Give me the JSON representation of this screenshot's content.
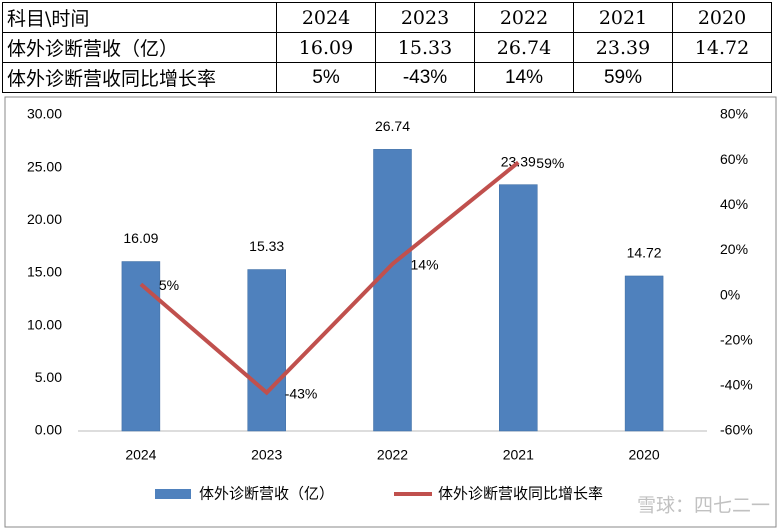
{
  "table": {
    "header": [
      "科目\\时间",
      "2024",
      "2023",
      "2022",
      "2021",
      "2020"
    ],
    "rows": [
      [
        "体外诊断营收（亿）",
        "16.09",
        "15.33",
        "26.74",
        "23.39",
        "14.72"
      ],
      [
        "体外诊断营收同比增长率",
        "5%",
        "-43%",
        "14%",
        "59%"
      ]
    ]
  },
  "chart_data": {
    "type": "bar",
    "categories": [
      "2024",
      "2023",
      "2022",
      "2021",
      "2020"
    ],
    "series": [
      {
        "name": "体外诊断营收（亿）",
        "color": "#4f81bd",
        "values": [
          16.09,
          15.33,
          26.74,
          23.39,
          14.72
        ]
      },
      {
        "name": "体外诊断营收同比增长率",
        "color": "#c0504d",
        "type": "line",
        "axis": "y2",
        "values": [
          5,
          -43,
          14,
          59,
          null
        ],
        "value_labels": [
          "5%",
          "-43%",
          "14%",
          "59%",
          null
        ]
      }
    ],
    "ylim": [
      0,
      30
    ],
    "yticks": [
      {
        "value": 0,
        "label": "0.00"
      },
      {
        "value": 5,
        "label": "5.00"
      },
      {
        "value": 10,
        "label": "10.00"
      },
      {
        "value": 15,
        "label": "15.00"
      },
      {
        "value": 20,
        "label": "20.00"
      },
      {
        "value": 25,
        "label": "25.00"
      },
      {
        "value": 30,
        "label": "30.00"
      }
    ],
    "y2lim": [
      -60,
      80
    ],
    "y2ticks": [
      {
        "value": -60,
        "label": "-60%"
      },
      {
        "value": -40,
        "label": "-40%"
      },
      {
        "value": -20,
        "label": "-20%"
      },
      {
        "value": 0,
        "label": "0%"
      },
      {
        "value": 20,
        "label": "20%"
      },
      {
        "value": 40,
        "label": "40%"
      },
      {
        "value": 60,
        "label": "60%"
      },
      {
        "value": 80,
        "label": "80%"
      }
    ],
    "grid": false,
    "legend": "bottom",
    "watermark": "雪球：四七二一"
  }
}
